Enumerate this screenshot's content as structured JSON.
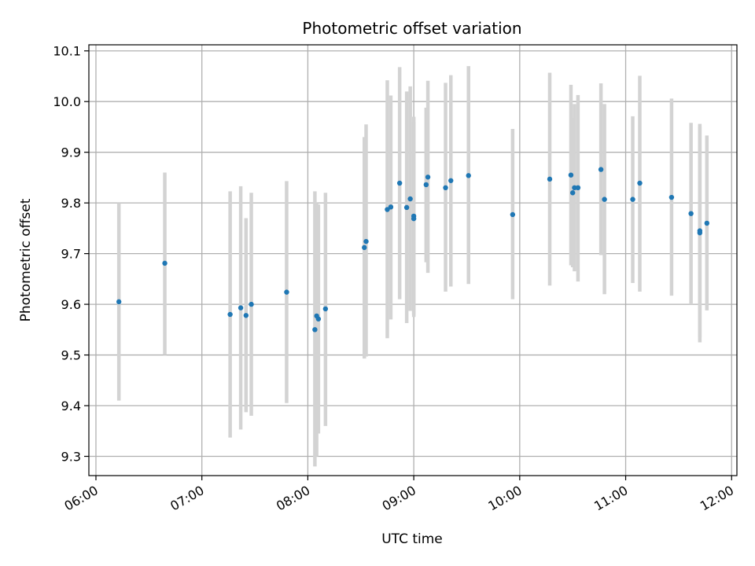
{
  "chart_data": {
    "type": "scatter",
    "title": "Photometric offset variation",
    "xlabel": "UTC time",
    "ylabel": "Photometric offset",
    "xlim": [
      "05:56",
      "12:03"
    ],
    "ylim": [
      9.262,
      10.112
    ],
    "grid": true,
    "x_ticks": [
      "06:00",
      "07:00",
      "08:00",
      "09:00",
      "10:00",
      "11:00",
      "12:00"
    ],
    "y_ticks": [
      "9.3",
      "9.4",
      "9.5",
      "9.6",
      "9.7",
      "9.8",
      "9.9",
      "10.0",
      "10.1"
    ],
    "colors": {
      "point": "#1f77b4",
      "errorbar": "#d3d3d3",
      "grid": "#b0b0b0"
    },
    "series": [
      {
        "points": [
          {
            "x": "06:13",
            "y": 9.605,
            "lo": 9.41,
            "hi": 9.8
          },
          {
            "x": "06:39",
            "y": 9.681,
            "lo": 9.5,
            "hi": 9.86
          },
          {
            "x": "07:16",
            "y": 9.58,
            "lo": 9.337,
            "hi": 9.823
          },
          {
            "x": "07:22",
            "y": 9.593,
            "lo": 9.353,
            "hi": 9.833
          },
          {
            "x": "07:25",
            "y": 9.578,
            "lo": 9.387,
            "hi": 9.77
          },
          {
            "x": "07:28",
            "y": 9.6,
            "lo": 9.38,
            "hi": 9.82
          },
          {
            "x": "07:48",
            "y": 9.624,
            "lo": 9.405,
            "hi": 9.843
          },
          {
            "x": "08:04",
            "y": 9.55,
            "lo": 9.28,
            "hi": 9.823
          },
          {
            "x": "08:05",
            "y": 9.577,
            "lo": 9.3,
            "hi": 9.8
          },
          {
            "x": "08:06",
            "y": 9.571,
            "lo": 9.345,
            "hi": 9.797
          },
          {
            "x": "08:10",
            "y": 9.591,
            "lo": 9.36,
            "hi": 9.82
          },
          {
            "x": "08:32",
            "y": 9.712,
            "lo": 9.493,
            "hi": 9.93
          },
          {
            "x": "08:33",
            "y": 9.724,
            "lo": 9.497,
            "hi": 9.955
          },
          {
            "x": "08:45",
            "y": 9.787,
            "lo": 9.533,
            "hi": 10.042
          },
          {
            "x": "08:47",
            "y": 9.792,
            "lo": 9.57,
            "hi": 10.012
          },
          {
            "x": "08:52",
            "y": 9.839,
            "lo": 9.61,
            "hi": 10.068
          },
          {
            "x": "08:56",
            "y": 9.791,
            "lo": 9.563,
            "hi": 10.02
          },
          {
            "x": "08:58",
            "y": 9.808,
            "lo": 9.587,
            "hi": 10.03
          },
          {
            "x": "09:00",
            "y": 9.774,
            "lo": 9.575,
            "hi": 9.97
          },
          {
            "x": "09:00",
            "y": 9.769,
            "lo": 9.58,
            "hi": 9.96
          },
          {
            "x": "09:07",
            "y": 9.836,
            "lo": 9.683,
            "hi": 9.988
          },
          {
            "x": "09:08",
            "y": 9.851,
            "lo": 9.662,
            "hi": 10.041
          },
          {
            "x": "09:18",
            "y": 9.83,
            "lo": 9.625,
            "hi": 10.037
          },
          {
            "x": "09:21",
            "y": 9.844,
            "lo": 9.635,
            "hi": 10.052
          },
          {
            "x": "09:31",
            "y": 9.854,
            "lo": 9.64,
            "hi": 10.07
          },
          {
            "x": "09:56",
            "y": 9.777,
            "lo": 9.61,
            "hi": 9.946
          },
          {
            "x": "10:17",
            "y": 9.847,
            "lo": 9.637,
            "hi": 10.057
          },
          {
            "x": "10:29",
            "y": 9.855,
            "lo": 9.677,
            "hi": 10.033
          },
          {
            "x": "10:30",
            "y": 9.82,
            "lo": 9.673,
            "hi": 9.967
          },
          {
            "x": "10:31",
            "y": 9.83,
            "lo": 9.665,
            "hi": 9.995
          },
          {
            "x": "10:33",
            "y": 9.83,
            "lo": 9.645,
            "hi": 10.013
          },
          {
            "x": "10:46",
            "y": 9.866,
            "lo": 9.697,
            "hi": 10.036
          },
          {
            "x": "10:48",
            "y": 9.807,
            "lo": 9.62,
            "hi": 9.995
          },
          {
            "x": "11:04",
            "y": 9.807,
            "lo": 9.642,
            "hi": 9.971
          },
          {
            "x": "11:08",
            "y": 9.839,
            "lo": 9.625,
            "hi": 10.051
          },
          {
            "x": "11:26",
            "y": 9.811,
            "lo": 9.617,
            "hi": 10.006
          },
          {
            "x": "11:37",
            "y": 9.779,
            "lo": 9.6,
            "hi": 9.958
          },
          {
            "x": "11:42",
            "y": 9.741,
            "lo": 9.525,
            "hi": 9.956
          },
          {
            "x": "11:42",
            "y": 9.745,
            "lo": 9.535,
            "hi": 9.95
          },
          {
            "x": "11:46",
            "y": 9.76,
            "lo": 9.588,
            "hi": 9.933
          }
        ]
      }
    ]
  }
}
